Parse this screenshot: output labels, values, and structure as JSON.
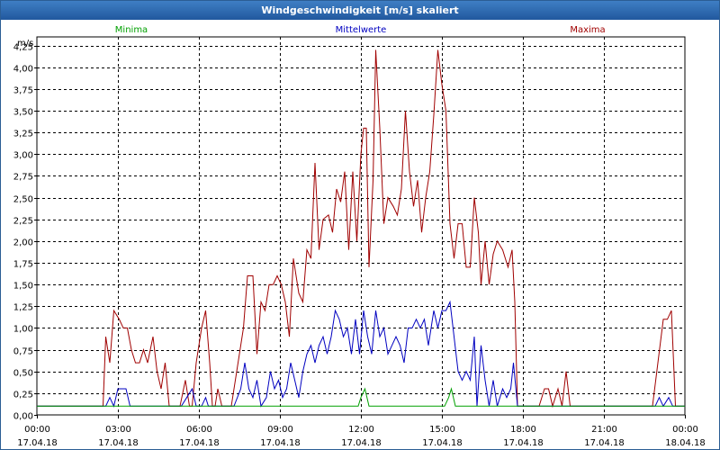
{
  "window": {
    "title": "Windgeschwindigkeit [m/s] skaliert"
  },
  "legend": {
    "minima": "Minima",
    "mittel": "Mittelwerte",
    "maxima": "Maxima"
  },
  "colors": {
    "minima": "#00a000",
    "mittel": "#0000c0",
    "maxima": "#a00000"
  },
  "chart_data": {
    "type": "line",
    "title": "Windgeschwindigkeit [m/s] skaliert",
    "ylabel": "m/s",
    "xlim": [
      0,
      24
    ],
    "ylim": [
      0,
      4.35
    ],
    "grid": true,
    "legend_placement": "top",
    "yticks": [
      {
        "v": 0,
        "label": "0,00"
      },
      {
        "v": 0.25,
        "label": "0,25"
      },
      {
        "v": 0.5,
        "label": "0,50"
      },
      {
        "v": 0.75,
        "label": "0,75"
      },
      {
        "v": 1,
        "label": "1,00"
      },
      {
        "v": 1.25,
        "label": "1,25"
      },
      {
        "v": 1.5,
        "label": "1,50"
      },
      {
        "v": 1.75,
        "label": "1,75"
      },
      {
        "v": 2,
        "label": "2,00"
      },
      {
        "v": 2.25,
        "label": "2,25"
      },
      {
        "v": 2.5,
        "label": "2,50"
      },
      {
        "v": 2.75,
        "label": "2,75"
      },
      {
        "v": 3,
        "label": "3,00"
      },
      {
        "v": 3.25,
        "label": "3,25"
      },
      {
        "v": 3.5,
        "label": "3,50"
      },
      {
        "v": 3.75,
        "label": "3,75"
      },
      {
        "v": 4,
        "label": "4,00"
      },
      {
        "v": 4.25,
        "label": "4,25"
      }
    ],
    "xticks": [
      {
        "v": 0,
        "time": "00:00",
        "date": "17.04.18"
      },
      {
        "v": 3,
        "time": "03:00",
        "date": "17.04.18"
      },
      {
        "v": 6,
        "time": "06:00",
        "date": "17.04.18"
      },
      {
        "v": 9,
        "time": "09:00",
        "date": "17.04.18"
      },
      {
        "v": 12,
        "time": "12:00",
        "date": "17.04.18"
      },
      {
        "v": 15,
        "time": "15:00",
        "date": "17.04.18"
      },
      {
        "v": 18,
        "time": "18:00",
        "date": "17.04.18"
      },
      {
        "v": 21,
        "time": "21:00",
        "date": "17.04.18"
      },
      {
        "v": 24,
        "time": "00:00",
        "date": "18.04.18"
      }
    ],
    "series": [
      {
        "name": "Maxima",
        "color": "#a00000",
        "points": [
          [
            0,
            0.1
          ],
          [
            2.45,
            0.1
          ],
          [
            2.55,
            0.9
          ],
          [
            2.7,
            0.6
          ],
          [
            2.85,
            1.2
          ],
          [
            3.05,
            1.1
          ],
          [
            3.2,
            1.0
          ],
          [
            3.35,
            1.0
          ],
          [
            3.5,
            0.75
          ],
          [
            3.65,
            0.6
          ],
          [
            3.8,
            0.6
          ],
          [
            3.95,
            0.75
          ],
          [
            4.1,
            0.6
          ],
          [
            4.3,
            0.9
          ],
          [
            4.45,
            0.5
          ],
          [
            4.6,
            0.3
          ],
          [
            4.75,
            0.6
          ],
          [
            4.9,
            0.1
          ],
          [
            5.3,
            0.1
          ],
          [
            5.5,
            0.4
          ],
          [
            5.65,
            0.1
          ],
          [
            5.75,
            0.1
          ],
          [
            5.9,
            0.6
          ],
          [
            6.1,
            1.0
          ],
          [
            6.25,
            1.2
          ],
          [
            6.4,
            0.6
          ],
          [
            6.5,
            0.1
          ],
          [
            6.6,
            0.1
          ],
          [
            6.7,
            0.3
          ],
          [
            6.85,
            0.1
          ],
          [
            7.2,
            0.1
          ],
          [
            7.35,
            0.4
          ],
          [
            7.5,
            0.7
          ],
          [
            7.65,
            1.0
          ],
          [
            7.8,
            1.6
          ],
          [
            8.0,
            1.6
          ],
          [
            8.15,
            0.7
          ],
          [
            8.3,
            1.3
          ],
          [
            8.45,
            1.2
          ],
          [
            8.6,
            1.5
          ],
          [
            8.75,
            1.5
          ],
          [
            8.9,
            1.6
          ],
          [
            9.05,
            1.5
          ],
          [
            9.2,
            1.3
          ],
          [
            9.35,
            0.9
          ],
          [
            9.5,
            1.8
          ],
          [
            9.7,
            1.4
          ],
          [
            9.85,
            1.3
          ],
          [
            10.0,
            1.9
          ],
          [
            10.15,
            1.8
          ],
          [
            10.3,
            2.9
          ],
          [
            10.45,
            1.9
          ],
          [
            10.6,
            2.25
          ],
          [
            10.8,
            2.3
          ],
          [
            10.95,
            2.1
          ],
          [
            11.1,
            2.6
          ],
          [
            11.25,
            2.45
          ],
          [
            11.4,
            2.8
          ],
          [
            11.55,
            1.9
          ],
          [
            11.7,
            2.8
          ],
          [
            11.85,
            2.0
          ],
          [
            12.0,
            3.0
          ],
          [
            12.1,
            3.3
          ],
          [
            12.2,
            3.3
          ],
          [
            12.3,
            1.7
          ],
          [
            12.45,
            2.7
          ],
          [
            12.55,
            4.2
          ],
          [
            12.7,
            3.3
          ],
          [
            12.85,
            2.2
          ],
          [
            13.0,
            2.5
          ],
          [
            13.2,
            2.4
          ],
          [
            13.35,
            2.3
          ],
          [
            13.5,
            2.6
          ],
          [
            13.65,
            3.5
          ],
          [
            13.8,
            2.8
          ],
          [
            13.95,
            2.4
          ],
          [
            14.1,
            2.7
          ],
          [
            14.25,
            2.1
          ],
          [
            14.4,
            2.5
          ],
          [
            14.55,
            2.8
          ],
          [
            14.7,
            3.45
          ],
          [
            14.85,
            4.2
          ],
          [
            15.0,
            3.8
          ],
          [
            15.15,
            3.5
          ],
          [
            15.3,
            2.2
          ],
          [
            15.45,
            1.8
          ],
          [
            15.6,
            2.2
          ],
          [
            15.75,
            2.2
          ],
          [
            15.9,
            1.7
          ],
          [
            16.05,
            1.7
          ],
          [
            16.2,
            2.5
          ],
          [
            16.35,
            2.1
          ],
          [
            16.45,
            1.5
          ],
          [
            16.6,
            2.0
          ],
          [
            16.75,
            1.5
          ],
          [
            16.9,
            1.85
          ],
          [
            17.05,
            2.0
          ],
          [
            17.25,
            1.9
          ],
          [
            17.45,
            1.7
          ],
          [
            17.6,
            1.9
          ],
          [
            17.7,
            1.3
          ],
          [
            17.8,
            0.1
          ],
          [
            18.6,
            0.1
          ],
          [
            18.8,
            0.3
          ],
          [
            18.95,
            0.3
          ],
          [
            19.1,
            0.1
          ],
          [
            19.3,
            0.3
          ],
          [
            19.45,
            0.1
          ],
          [
            19.6,
            0.5
          ],
          [
            19.75,
            0.1
          ],
          [
            22.8,
            0.1
          ],
          [
            23.0,
            0.6
          ],
          [
            23.2,
            1.1
          ],
          [
            23.35,
            1.1
          ],
          [
            23.5,
            1.2
          ],
          [
            23.65,
            0.1
          ],
          [
            24,
            0.1
          ]
        ]
      },
      {
        "name": "Mittelwerte",
        "color": "#0000c0",
        "points": [
          [
            0,
            0.1
          ],
          [
            2.55,
            0.1
          ],
          [
            2.7,
            0.2
          ],
          [
            2.85,
            0.1
          ],
          [
            3.0,
            0.3
          ],
          [
            3.3,
            0.3
          ],
          [
            3.45,
            0.1
          ],
          [
            5.35,
            0.1
          ],
          [
            5.55,
            0.2
          ],
          [
            5.75,
            0.3
          ],
          [
            5.9,
            0.1
          ],
          [
            6.1,
            0.1
          ],
          [
            6.25,
            0.2
          ],
          [
            6.35,
            0.1
          ],
          [
            7.3,
            0.1
          ],
          [
            7.55,
            0.3
          ],
          [
            7.7,
            0.6
          ],
          [
            7.85,
            0.3
          ],
          [
            8.0,
            0.2
          ],
          [
            8.15,
            0.4
          ],
          [
            8.3,
            0.1
          ],
          [
            8.5,
            0.2
          ],
          [
            8.65,
            0.5
          ],
          [
            8.8,
            0.3
          ],
          [
            8.95,
            0.4
          ],
          [
            9.1,
            0.2
          ],
          [
            9.25,
            0.3
          ],
          [
            9.4,
            0.6
          ],
          [
            9.55,
            0.4
          ],
          [
            9.7,
            0.2
          ],
          [
            9.85,
            0.5
          ],
          [
            10.0,
            0.7
          ],
          [
            10.15,
            0.8
          ],
          [
            10.3,
            0.6
          ],
          [
            10.45,
            0.8
          ],
          [
            10.6,
            0.9
          ],
          [
            10.75,
            0.7
          ],
          [
            10.9,
            0.9
          ],
          [
            11.05,
            1.2
          ],
          [
            11.2,
            1.1
          ],
          [
            11.35,
            0.9
          ],
          [
            11.5,
            1.0
          ],
          [
            11.65,
            0.7
          ],
          [
            11.8,
            1.1
          ],
          [
            11.95,
            0.7
          ],
          [
            12.1,
            1.2
          ],
          [
            12.25,
            0.9
          ],
          [
            12.4,
            0.7
          ],
          [
            12.55,
            1.2
          ],
          [
            12.7,
            0.9
          ],
          [
            12.85,
            1.0
          ],
          [
            13.0,
            0.7
          ],
          [
            13.15,
            0.8
          ],
          [
            13.3,
            0.9
          ],
          [
            13.45,
            0.8
          ],
          [
            13.6,
            0.6
          ],
          [
            13.75,
            1.0
          ],
          [
            13.9,
            1.0
          ],
          [
            14.05,
            1.1
          ],
          [
            14.2,
            1.0
          ],
          [
            14.35,
            1.1
          ],
          [
            14.5,
            0.8
          ],
          [
            14.7,
            1.2
          ],
          [
            14.85,
            1.0
          ],
          [
            15.0,
            1.2
          ],
          [
            15.15,
            1.2
          ],
          [
            15.3,
            1.3
          ],
          [
            15.45,
            0.9
          ],
          [
            15.6,
            0.5
          ],
          [
            15.75,
            0.4
          ],
          [
            15.9,
            0.5
          ],
          [
            16.05,
            0.4
          ],
          [
            16.2,
            0.9
          ],
          [
            16.3,
            0.1
          ],
          [
            16.45,
            0.8
          ],
          [
            16.6,
            0.4
          ],
          [
            16.75,
            0.1
          ],
          [
            16.9,
            0.4
          ],
          [
            17.05,
            0.1
          ],
          [
            17.25,
            0.3
          ],
          [
            17.4,
            0.2
          ],
          [
            17.55,
            0.3
          ],
          [
            17.65,
            0.6
          ],
          [
            17.8,
            0.1
          ],
          [
            22.9,
            0.1
          ],
          [
            23.05,
            0.2
          ],
          [
            23.2,
            0.1
          ],
          [
            23.4,
            0.2
          ],
          [
            23.55,
            0.1
          ],
          [
            24,
            0.1
          ]
        ]
      },
      {
        "name": "Minima",
        "color": "#00a000",
        "points": [
          [
            0,
            0.1
          ],
          [
            11.9,
            0.1
          ],
          [
            12.0,
            0.2
          ],
          [
            12.15,
            0.3
          ],
          [
            12.3,
            0.1
          ],
          [
            15.1,
            0.1
          ],
          [
            15.25,
            0.2
          ],
          [
            15.35,
            0.3
          ],
          [
            15.5,
            0.1
          ],
          [
            24,
            0.1
          ]
        ]
      }
    ]
  }
}
